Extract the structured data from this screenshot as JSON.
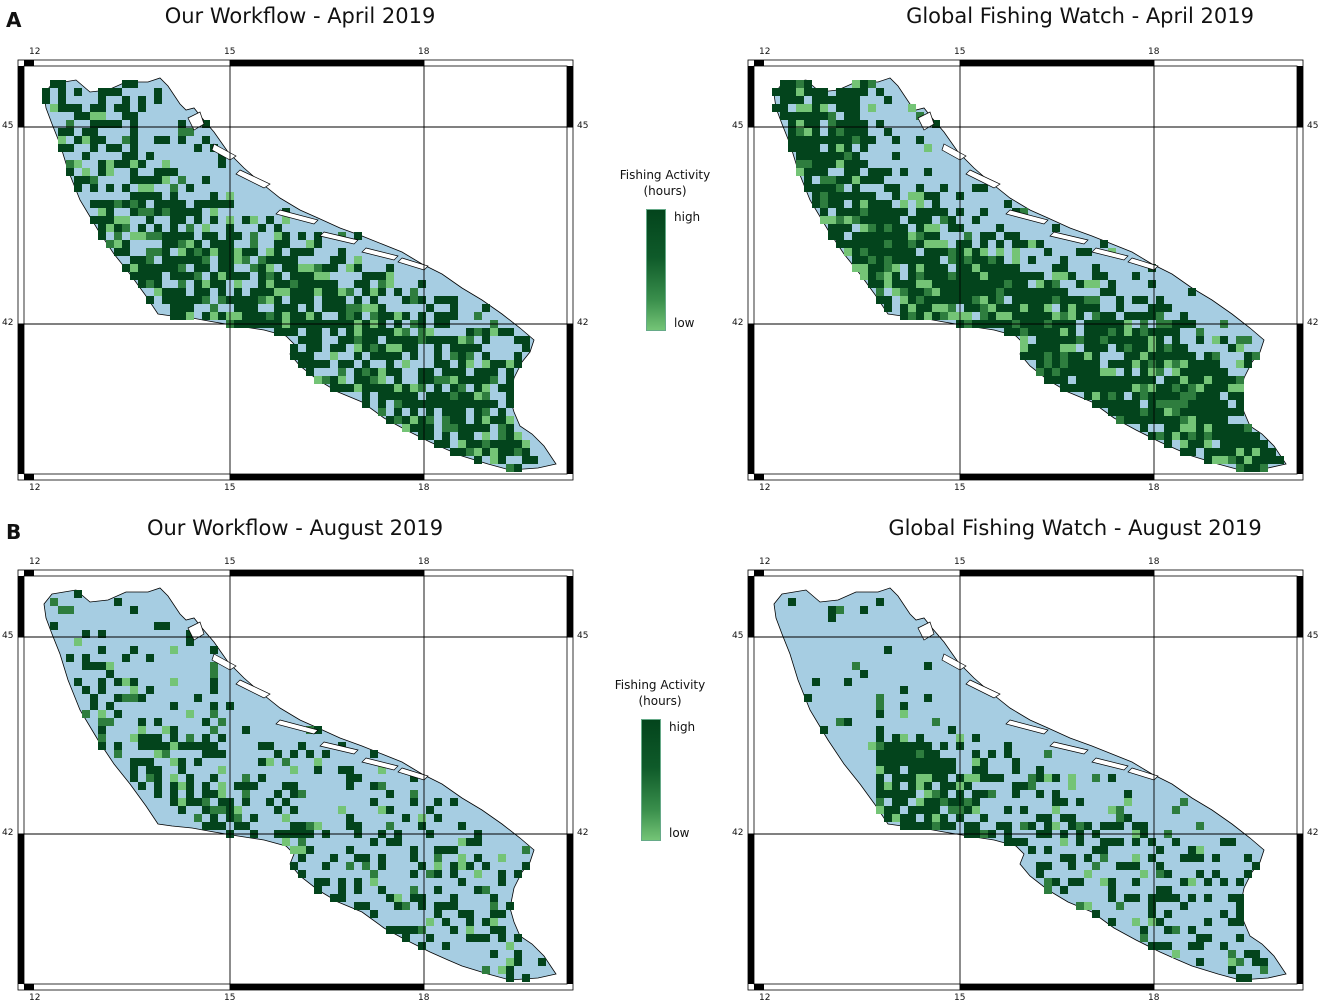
{
  "figure": {
    "panels": [
      {
        "letter": "A",
        "legend": {
          "title_line1": "Fishing Activity",
          "title_line2": "(hours)",
          "high": "high",
          "low": "low"
        },
        "maps": [
          {
            "title": "Our Workflow - April 2019",
            "intensity": "high-spread",
            "seed": 11
          },
          {
            "title": "Global Fishing Watch - April 2019",
            "intensity": "high-dense",
            "seed": 23
          }
        ]
      },
      {
        "letter": "B",
        "legend": {
          "title_line1": "Fishing Activity",
          "title_line2": "(hours)",
          "high": "high",
          "low": "low"
        },
        "maps": [
          {
            "title": "Our Workflow - August 2019",
            "intensity": "medium",
            "seed": 37
          },
          {
            "title": "Global Fishing Watch - August 2019",
            "intensity": "medium-dense",
            "seed": 53
          }
        ]
      }
    ],
    "axes": {
      "longitude_ticks": [
        "12",
        "15",
        "18"
      ],
      "latitude_ticks": [
        "45",
        "42"
      ]
    },
    "colors": {
      "sea": "#a6cde2",
      "high": "#03441c",
      "mid": "#2e7d3e",
      "low": "#74c476",
      "coast": "#000000",
      "grid": "#000000"
    }
  }
}
